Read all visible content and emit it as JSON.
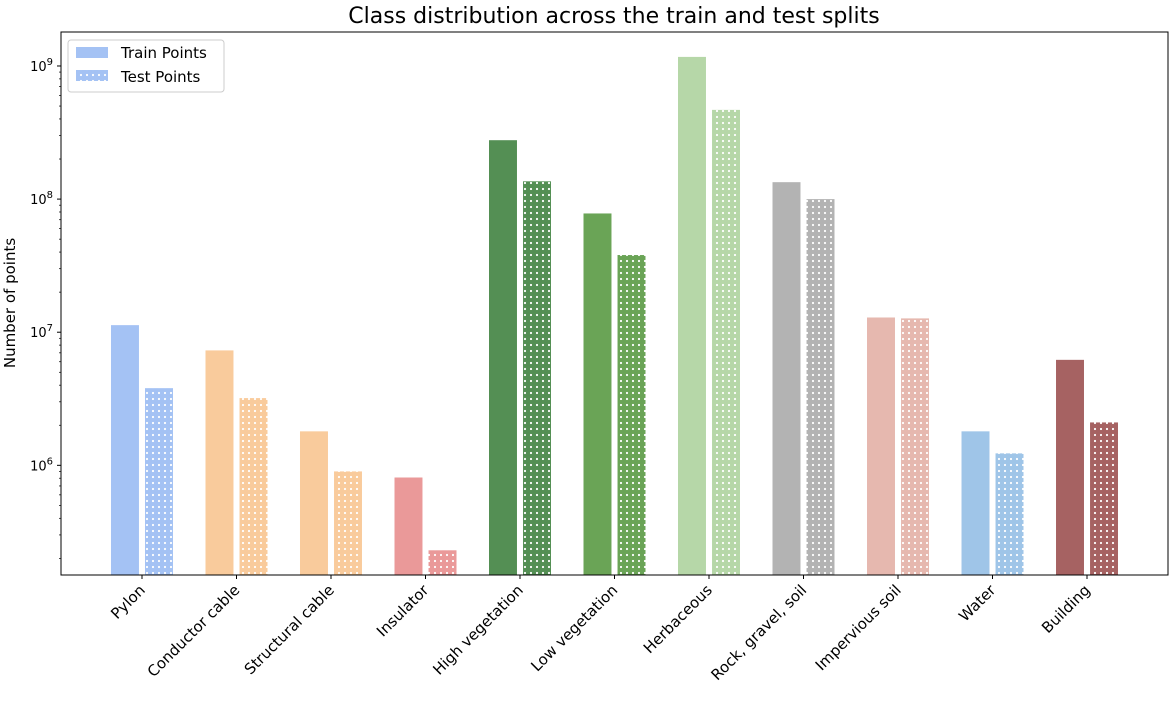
{
  "chart_data": {
    "type": "bar",
    "title": "Class distribution across the train and test splits",
    "xlabel": "",
    "ylabel": "Number of points",
    "yscale": "log",
    "ylim": [
      150000,
      1800000000
    ],
    "yticks": [
      1000000,
      10000000,
      100000000,
      1000000000
    ],
    "ytick_labels": [
      {
        "base": "10",
        "exp": "6"
      },
      {
        "base": "10",
        "exp": "7"
      },
      {
        "base": "10",
        "exp": "8"
      },
      {
        "base": "10",
        "exp": "9"
      }
    ],
    "grid": false,
    "legend_position": "top-left",
    "categories": [
      "Pylon",
      "Conductor cable",
      "Structural cable",
      "Insulator",
      "High vegetation",
      "Low vegetation",
      "Herbaceous",
      "Rock, gravel, soil",
      "Impervious soil",
      "Water",
      "Building"
    ],
    "colors": [
      "#a4c2f4",
      "#f9cb9c",
      "#f9cb9c",
      "#ea9999",
      "#548f54",
      "#6aa456",
      "#b6d7a8",
      "#b3b3b3",
      "#e6b8af",
      "#9fc5e8",
      "#a66262"
    ],
    "series": [
      {
        "name": "Train Points",
        "hatch": "none",
        "values": [
          11300000,
          7300000,
          1800000,
          810000,
          277000000,
          78000000,
          1170000000,
          134000000,
          12900000,
          1800000,
          6200000
        ]
      },
      {
        "name": "Test Points",
        "hatch": "dots",
        "values": [
          3800000,
          3200000,
          900000,
          230000,
          136000000,
          38000000,
          468000000,
          100000000,
          12700000,
          1230000,
          2100000
        ]
      }
    ]
  }
}
